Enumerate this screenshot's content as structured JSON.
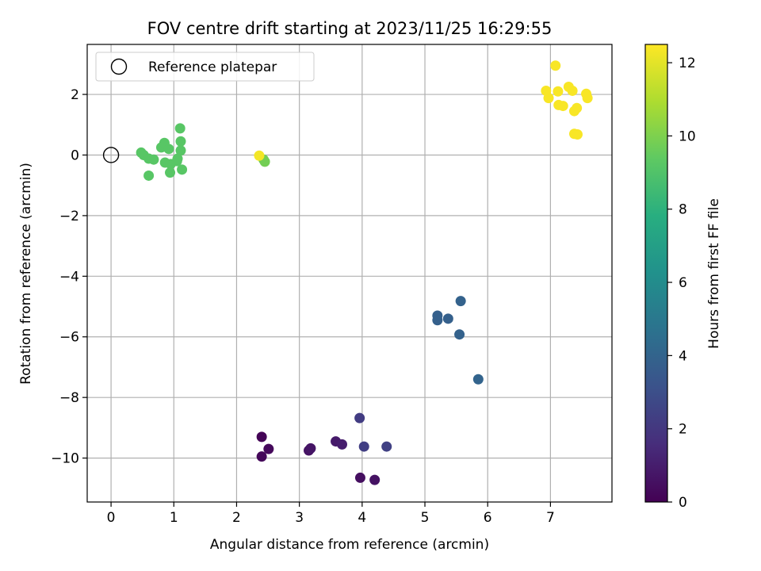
{
  "chart_data": {
    "type": "scatter",
    "title": "FOV centre drift starting at 2023/11/25 16:29:55",
    "xlabel": "Angular distance from reference (arcmin)",
    "ylabel": "Rotation from reference (arcmin)",
    "xlim": [
      -0.38,
      7.98
    ],
    "ylim": [
      -11.45,
      3.65
    ],
    "xticks": [
      0,
      1,
      2,
      3,
      4,
      5,
      6,
      7
    ],
    "yticks": [
      -10,
      -8,
      -6,
      -4,
      -2,
      0,
      2
    ],
    "grid": true,
    "legend": {
      "placement": "upper-left",
      "entries": [
        "Reference platepar"
      ]
    },
    "reference_point": {
      "x": 0,
      "y": 0
    },
    "colorbar": {
      "label": "Hours from first FF file",
      "range": [
        0,
        12.5
      ],
      "ticks": [
        0,
        2,
        4,
        6,
        8,
        10,
        12
      ],
      "colormap": "viridis"
    },
    "points": [
      {
        "x": 2.4,
        "y": -9.3,
        "h": 0.1
      },
      {
        "x": 2.4,
        "y": -9.95,
        "h": 0.2
      },
      {
        "x": 2.51,
        "y": -9.7,
        "h": 0.3
      },
      {
        "x": 3.15,
        "y": -9.75,
        "h": 0.6
      },
      {
        "x": 3.18,
        "y": -9.68,
        "h": 0.7
      },
      {
        "x": 3.58,
        "y": -9.45,
        "h": 0.9
      },
      {
        "x": 3.68,
        "y": -9.55,
        "h": 1.0
      },
      {
        "x": 3.97,
        "y": -10.65,
        "h": 0.5
      },
      {
        "x": 4.2,
        "y": -10.72,
        "h": 0.6
      },
      {
        "x": 3.96,
        "y": -8.68,
        "h": 2.2
      },
      {
        "x": 4.03,
        "y": -9.62,
        "h": 2.3
      },
      {
        "x": 4.39,
        "y": -9.62,
        "h": 2.4
      },
      {
        "x": 5.2,
        "y": -5.3,
        "h": 3.8
      },
      {
        "x": 5.2,
        "y": -5.45,
        "h": 3.8
      },
      {
        "x": 5.37,
        "y": -5.4,
        "h": 3.8
      },
      {
        "x": 5.57,
        "y": -4.82,
        "h": 3.9
      },
      {
        "x": 5.55,
        "y": -5.92,
        "h": 3.9
      },
      {
        "x": 5.85,
        "y": -7.4,
        "h": 4.0
      },
      {
        "x": 0.48,
        "y": 0.08,
        "h": 9.2
      },
      {
        "x": 0.52,
        "y": 0.0,
        "h": 9.2
      },
      {
        "x": 0.6,
        "y": -0.12,
        "h": 9.2
      },
      {
        "x": 0.68,
        "y": -0.15,
        "h": 9.2
      },
      {
        "x": 0.6,
        "y": -0.68,
        "h": 9.2
      },
      {
        "x": 0.8,
        "y": 0.25,
        "h": 9.2
      },
      {
        "x": 0.85,
        "y": 0.4,
        "h": 9.2
      },
      {
        "x": 0.92,
        "y": 0.2,
        "h": 9.2
      },
      {
        "x": 0.86,
        "y": -0.25,
        "h": 9.2
      },
      {
        "x": 0.95,
        "y": -0.3,
        "h": 9.2
      },
      {
        "x": 0.94,
        "y": -0.58,
        "h": 9.2
      },
      {
        "x": 1.05,
        "y": -0.2,
        "h": 9.2
      },
      {
        "x": 1.06,
        "y": -0.12,
        "h": 9.2
      },
      {
        "x": 1.1,
        "y": 0.88,
        "h": 9.2
      },
      {
        "x": 1.11,
        "y": 0.45,
        "h": 9.2
      },
      {
        "x": 1.11,
        "y": 0.15,
        "h": 9.2
      },
      {
        "x": 1.13,
        "y": -0.48,
        "h": 9.2
      },
      {
        "x": 2.43,
        "y": -0.15,
        "h": 9.8
      },
      {
        "x": 2.45,
        "y": -0.22,
        "h": 9.8
      },
      {
        "x": 2.36,
        "y": -0.02,
        "h": 12.3
      },
      {
        "x": 7.08,
        "y": 2.95,
        "h": 12.4
      },
      {
        "x": 6.93,
        "y": 2.12,
        "h": 12.4
      },
      {
        "x": 6.97,
        "y": 1.88,
        "h": 12.4
      },
      {
        "x": 7.12,
        "y": 2.1,
        "h": 12.4
      },
      {
        "x": 7.13,
        "y": 1.65,
        "h": 12.4
      },
      {
        "x": 7.2,
        "y": 1.62,
        "h": 12.4
      },
      {
        "x": 7.29,
        "y": 2.25,
        "h": 12.4
      },
      {
        "x": 7.35,
        "y": 2.12,
        "h": 12.4
      },
      {
        "x": 7.38,
        "y": 1.45,
        "h": 12.4
      },
      {
        "x": 7.42,
        "y": 1.55,
        "h": 12.4
      },
      {
        "x": 7.38,
        "y": 0.7,
        "h": 12.4
      },
      {
        "x": 7.43,
        "y": 0.68,
        "h": 12.4
      },
      {
        "x": 7.57,
        "y": 2.02,
        "h": 12.4
      },
      {
        "x": 7.59,
        "y": 1.88,
        "h": 12.4
      }
    ]
  }
}
